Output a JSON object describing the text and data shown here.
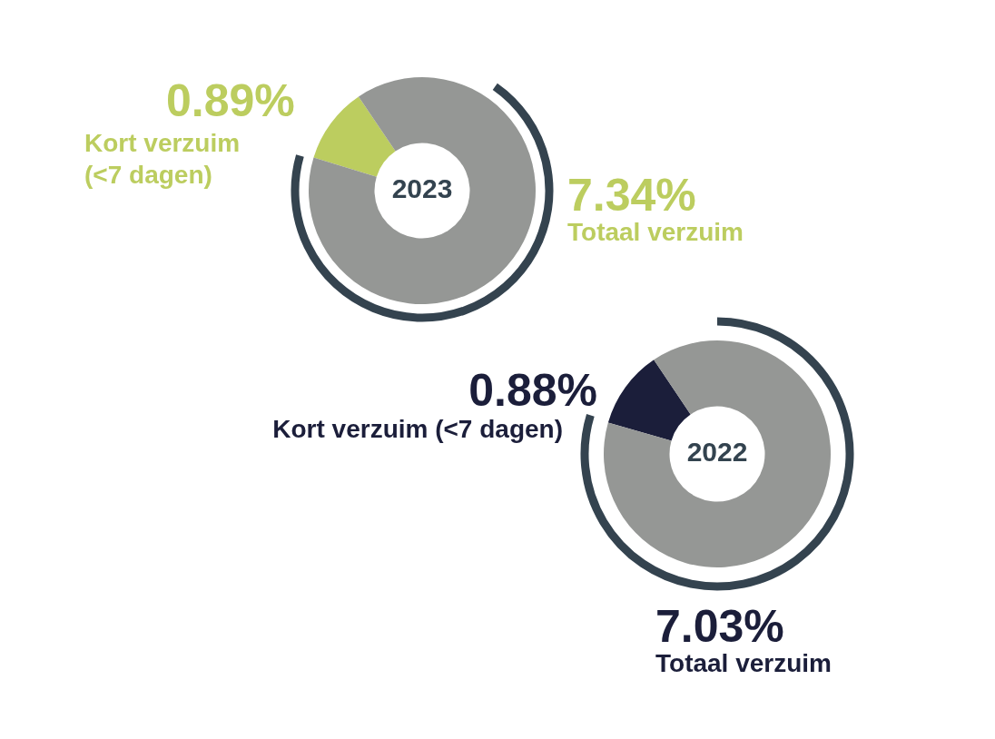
{
  "chart_data": [
    {
      "type": "donut",
      "title": "2023",
      "categories": [
        "Kort verzuim (<7 dagen)",
        "Totaal verzuim"
      ],
      "values": [
        0.89,
        7.34
      ],
      "value_labels": [
        "0.89%",
        "7.34%"
      ],
      "colors": [
        "#bccd5f",
        "#959795"
      ]
    },
    {
      "type": "donut",
      "title": "2022",
      "categories": [
        "Kort verzuim (<7 dagen)",
        "Totaal verzuim"
      ],
      "values": [
        0.88,
        7.03
      ],
      "value_labels": [
        "0.88%",
        "7.03%"
      ],
      "colors": [
        "#1b1e3a",
        "#959795"
      ]
    }
  ]
}
